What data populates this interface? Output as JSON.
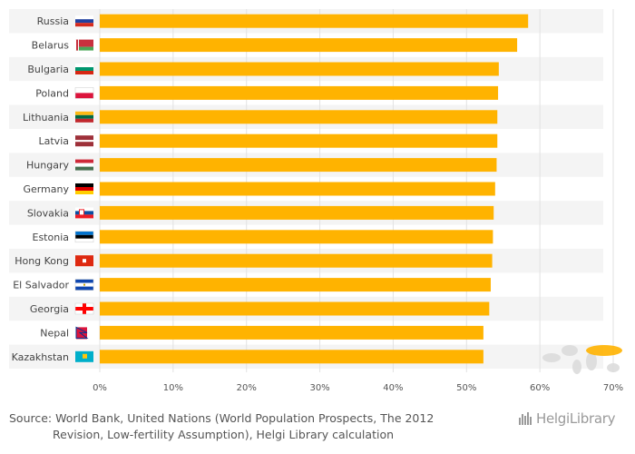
{
  "chart_data": {
    "type": "bar",
    "orientation": "horizontal",
    "categories": [
      "Russia",
      "Belarus",
      "Bulgaria",
      "Poland",
      "Lithuania",
      "Latvia",
      "Hungary",
      "Germany",
      "Slovakia",
      "Estonia",
      "Hong Kong",
      "El Salvador",
      "Georgia",
      "Nepal",
      "Kazakhstan"
    ],
    "values": [
      58.4,
      56.9,
      54.4,
      54.3,
      54.2,
      54.2,
      54.1,
      53.9,
      53.7,
      53.6,
      53.5,
      53.3,
      53.1,
      52.3,
      52.3
    ],
    "value_format": "percent",
    "xlim": [
      0,
      70
    ],
    "xticks": [
      "0%",
      "10%",
      "20%",
      "30%",
      "40%",
      "50%",
      "60%",
      "70%"
    ],
    "grid": true,
    "bar_color": "#ffb300"
  },
  "flags": [
    "flag-russia-icon",
    "flag-belarus-icon",
    "flag-bulgaria-icon",
    "flag-poland-icon",
    "flag-lithuania-icon",
    "flag-latvia-icon",
    "flag-hungary-icon",
    "flag-germany-icon",
    "flag-slovakia-icon",
    "flag-estonia-icon",
    "flag-hong-kong-icon",
    "flag-el-salvador-icon",
    "flag-georgia-icon",
    "flag-nepal-icon",
    "flag-kazakhstan-icon"
  ],
  "source": {
    "line1": "Source: World Bank, United Nations (World Population Prospects, The 2012",
    "line2": "Revision, Low-fertility Assumption), Helgi Library calculation"
  },
  "brand": "HelgiLibrary"
}
